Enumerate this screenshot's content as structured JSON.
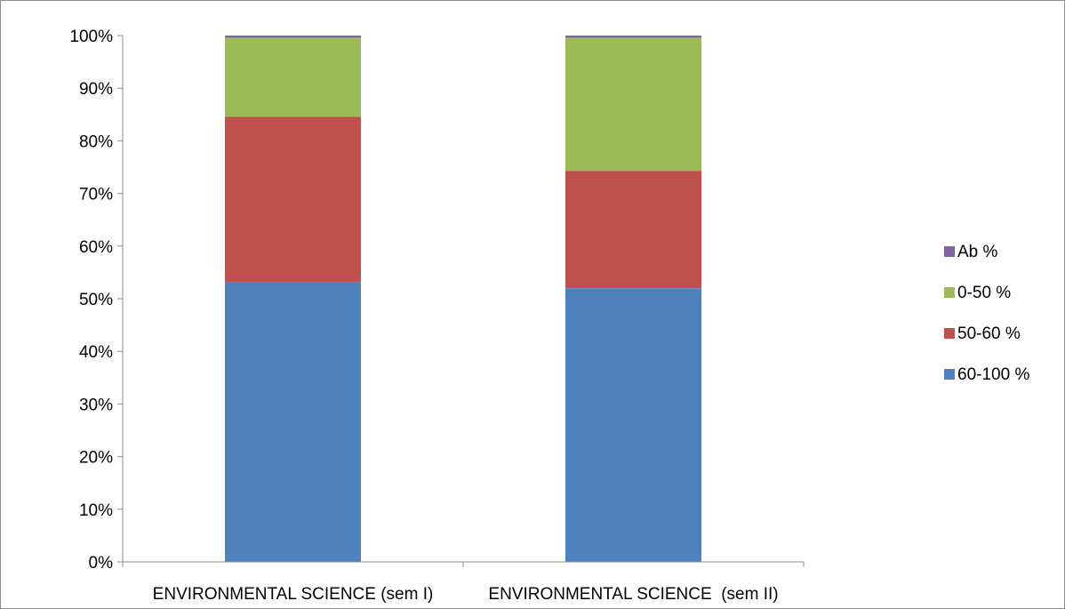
{
  "chart_data": {
    "type": "bar",
    "stacked": true,
    "percent_stacked": true,
    "categories": [
      "ENVIRONMENTAL SCIENCE (sem I)",
      "ENVIRONMENTAL SCIENCE  (sem II)"
    ],
    "series": [
      {
        "name": "60-100 %",
        "color": "#4f81bd",
        "values": [
          53.2,
          52.0
        ]
      },
      {
        "name": "50-60 %",
        "color": "#c0504d",
        "values": [
          31.4,
          22.3
        ]
      },
      {
        "name": "0-50 %",
        "color": "#9bbb59",
        "values": [
          15.0,
          25.3
        ]
      },
      {
        "name": "Ab %",
        "color": "#8064a2",
        "values": [
          0.4,
          0.4
        ]
      }
    ],
    "y_ticks": [
      "0%",
      "10%",
      "20%",
      "30%",
      "40%",
      "50%",
      "60%",
      "70%",
      "80%",
      "90%",
      "100%"
    ],
    "ylim": [
      0,
      100
    ],
    "grid": false,
    "legend_position": "right",
    "legend_order": [
      "Ab %",
      "0-50 %",
      "50-60 %",
      "60-100 %"
    ]
  }
}
